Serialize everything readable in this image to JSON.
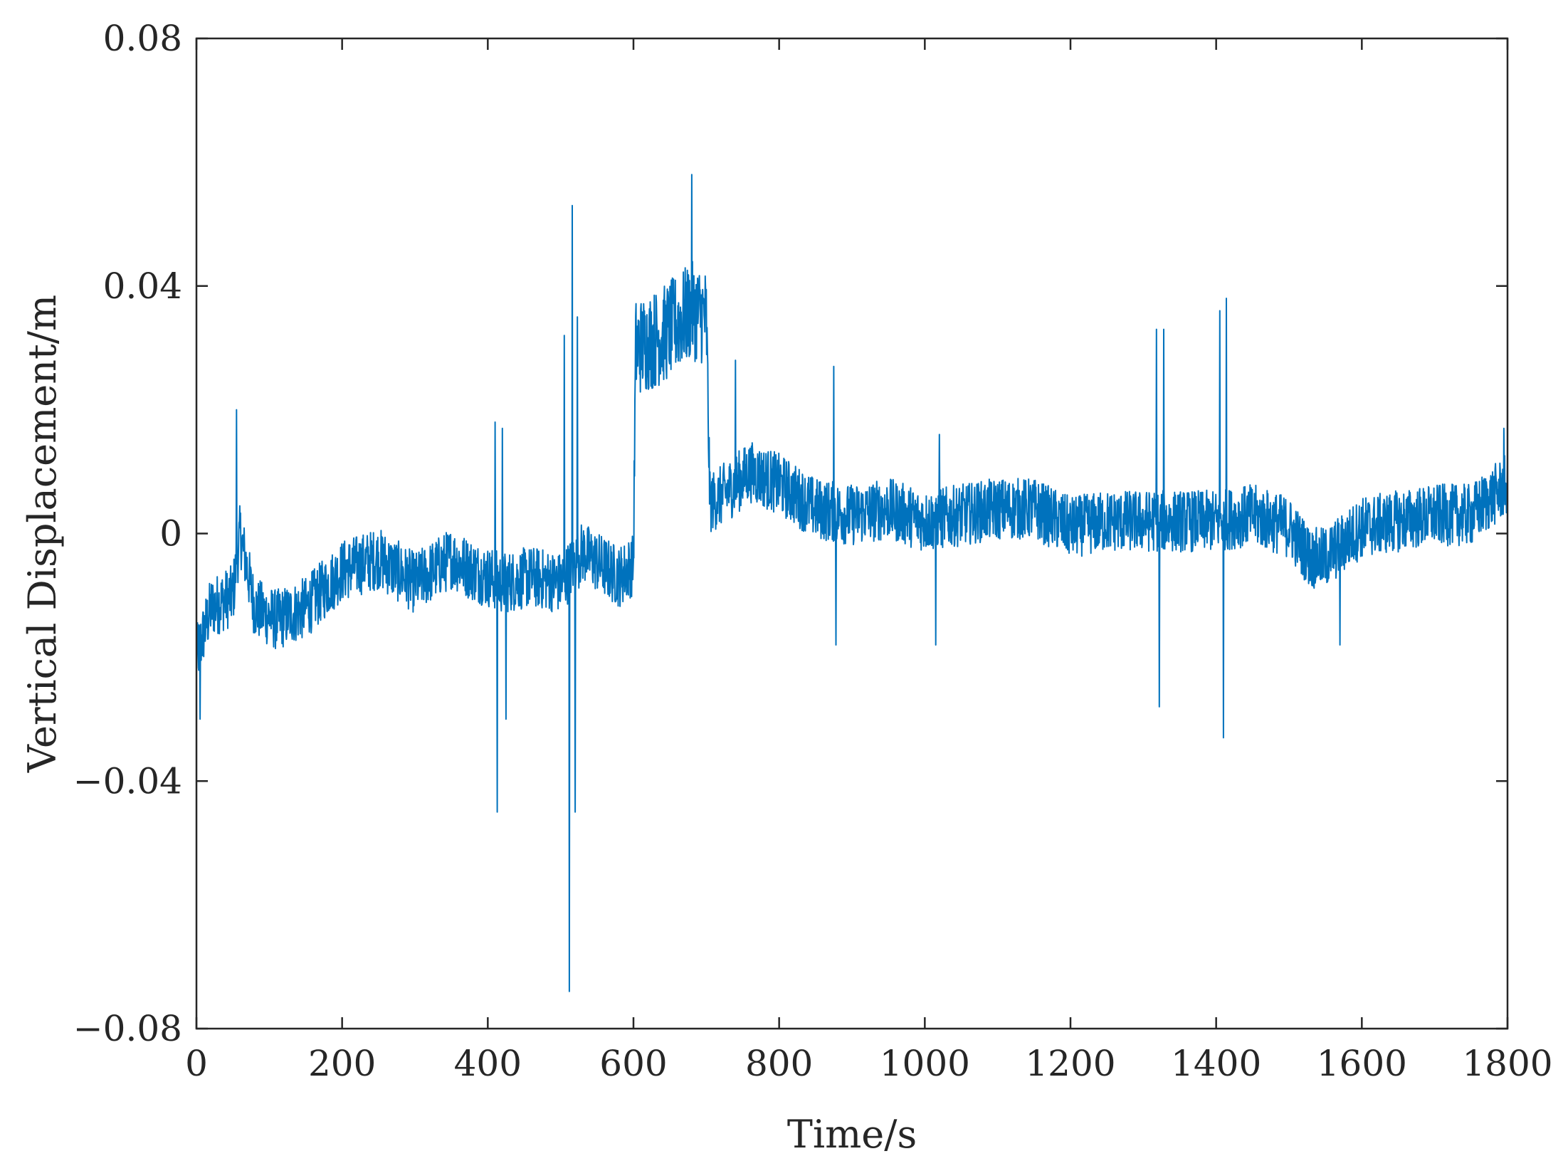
{
  "chart_data": {
    "type": "line",
    "title": "",
    "xlabel": "Time/s",
    "ylabel": "Vertical Displacement/m",
    "xlim": [
      0,
      1800
    ],
    "ylim": [
      -0.08,
      0.08
    ],
    "x_ticks": [
      0,
      200,
      400,
      600,
      800,
      1000,
      1200,
      1400,
      1600,
      1800
    ],
    "y_ticks": [
      -0.08,
      -0.04,
      0,
      0.04,
      0.08
    ],
    "x_tick_labels": [
      "0",
      "200",
      "400",
      "600",
      "800",
      "1000",
      "1200",
      "1400",
      "1600",
      "1800"
    ],
    "y_tick_labels": [
      "−0.08",
      "−0.04",
      "0",
      "0.04",
      "0.08"
    ],
    "grid": false,
    "box": true,
    "series": [
      {
        "color": "#0072BD",
        "trend": [
          [
            0,
            -0.02
          ],
          [
            20,
            -0.012
          ],
          [
            50,
            -0.01
          ],
          [
            60,
            0.0
          ],
          [
            80,
            -0.012
          ],
          [
            110,
            -0.014
          ],
          [
            150,
            -0.012
          ],
          [
            200,
            -0.006
          ],
          [
            250,
            -0.004
          ],
          [
            300,
            -0.008
          ],
          [
            350,
            -0.004
          ],
          [
            380,
            -0.006
          ],
          [
            420,
            -0.008
          ],
          [
            460,
            -0.007
          ],
          [
            500,
            -0.008
          ],
          [
            530,
            -0.003
          ],
          [
            580,
            -0.007
          ],
          [
            600,
            -0.005
          ],
          [
            603,
            0.03
          ],
          [
            640,
            0.032
          ],
          [
            680,
            0.036
          ],
          [
            700,
            0.035
          ],
          [
            705,
            0.005
          ],
          [
            720,
            0.006
          ],
          [
            760,
            0.01
          ],
          [
            800,
            0.008
          ],
          [
            850,
            0.004
          ],
          [
            900,
            0.003
          ],
          [
            950,
            0.004
          ],
          [
            1000,
            0.002
          ],
          [
            1050,
            0.003
          ],
          [
            1100,
            0.004
          ],
          [
            1150,
            0.004
          ],
          [
            1200,
            0.001
          ],
          [
            1250,
            0.002
          ],
          [
            1300,
            0.002
          ],
          [
            1350,
            0.002
          ],
          [
            1400,
            0.002
          ],
          [
            1450,
            0.003
          ],
          [
            1500,
            0.001
          ],
          [
            1530,
            -0.004
          ],
          [
            1550,
            -0.004
          ],
          [
            1600,
            0.001
          ],
          [
            1650,
            0.002
          ],
          [
            1700,
            0.003
          ],
          [
            1750,
            0.003
          ],
          [
            1800,
            0.008
          ]
        ],
        "noise_amplitude": [
          [
            0,
            0.005
          ],
          [
            600,
            0.005
          ],
          [
            603,
            0.008
          ],
          [
            700,
            0.008
          ],
          [
            705,
            0.005
          ],
          [
            1800,
            0.005
          ]
        ],
        "spikes": [
          [
            5,
            -0.03
          ],
          [
            55,
            0.02
          ],
          [
            410,
            0.018
          ],
          [
            413,
            -0.045
          ],
          [
            420,
            0.017
          ],
          [
            425,
            -0.03
          ],
          [
            505,
            0.032
          ],
          [
            512,
            -0.074
          ],
          [
            516,
            0.053
          ],
          [
            520,
            -0.045
          ],
          [
            523,
            0.035
          ],
          [
            680,
            0.058
          ],
          [
            740,
            0.028
          ],
          [
            875,
            0.027
          ],
          [
            878,
            -0.018
          ],
          [
            1015,
            -0.018
          ],
          [
            1020,
            0.016
          ],
          [
            1318,
            0.033
          ],
          [
            1322,
            -0.028
          ],
          [
            1328,
            0.033
          ],
          [
            1405,
            0.036
          ],
          [
            1410,
            -0.033
          ],
          [
            1414,
            0.038
          ],
          [
            1570,
            -0.018
          ],
          [
            1795,
            0.017
          ]
        ]
      }
    ]
  }
}
